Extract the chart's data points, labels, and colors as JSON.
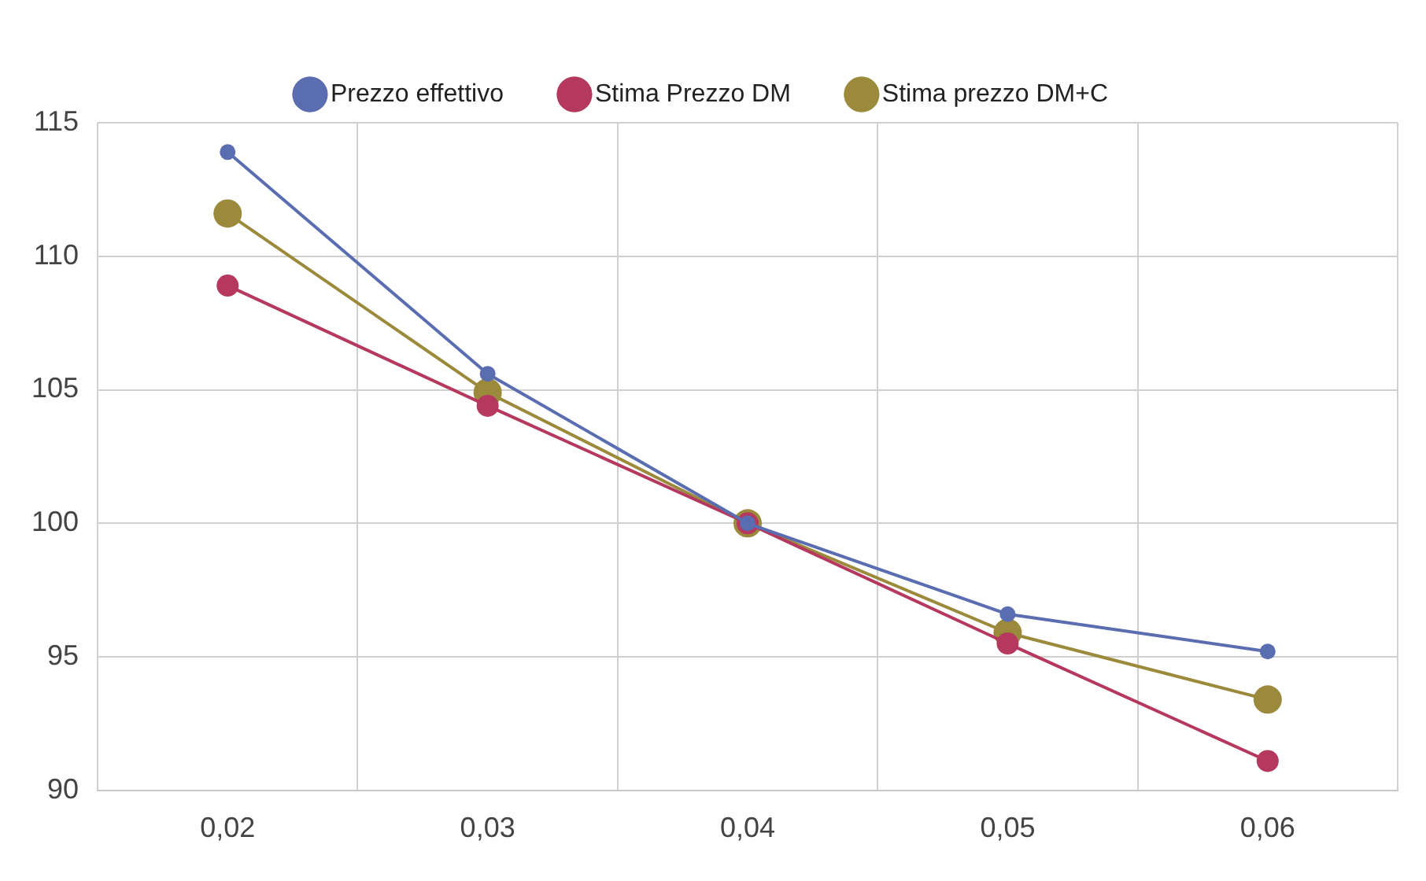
{
  "chart_data": {
    "type": "line",
    "categories": [
      "0,02",
      "0,03",
      "0,04",
      "0,05",
      "0,06"
    ],
    "series": [
      {
        "name": "Prezzo effettivo",
        "color": "#5a6db0",
        "values": [
          113.9,
          105.6,
          100,
          96.6,
          95.2
        ]
      },
      {
        "name": "Stima Prezzo DM",
        "color": "#b5385f",
        "values": [
          108.9,
          104.4,
          100,
          95.5,
          91.1
        ]
      },
      {
        "name": "Stima prezzo DM+C",
        "color": "#9b8a3c",
        "values": [
          111.6,
          104.9,
          100,
          95.9,
          93.4
        ]
      }
    ],
    "ylim": [
      90,
      115
    ],
    "yticks": [
      90,
      95,
      100,
      105,
      110,
      115
    ],
    "grid": true,
    "legend": "top",
    "marker": "circle"
  }
}
